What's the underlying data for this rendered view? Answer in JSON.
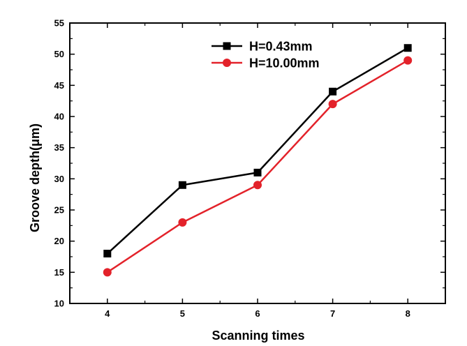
{
  "chart_data": {
    "type": "line",
    "title": "",
    "xlabel": "Scanning times",
    "ylabel": "Groove depth(μm)",
    "x": [
      4,
      5,
      6,
      7,
      8
    ],
    "xlim": [
      3.5,
      8.5
    ],
    "ylim": [
      10,
      55
    ],
    "xticks": [
      4,
      5,
      6,
      7,
      8
    ],
    "yticks": [
      10,
      15,
      20,
      25,
      30,
      35,
      40,
      45,
      50,
      55
    ],
    "grid": false,
    "legend_position": "top-right",
    "series": [
      {
        "name": "H=0.43mm",
        "values": [
          18,
          29,
          31,
          44,
          51
        ],
        "color": "#000000",
        "marker": "square"
      },
      {
        "name": "H=10.00mm",
        "values": [
          15,
          23,
          29,
          42,
          49
        ],
        "color": "#e3222a",
        "marker": "circle"
      }
    ]
  }
}
